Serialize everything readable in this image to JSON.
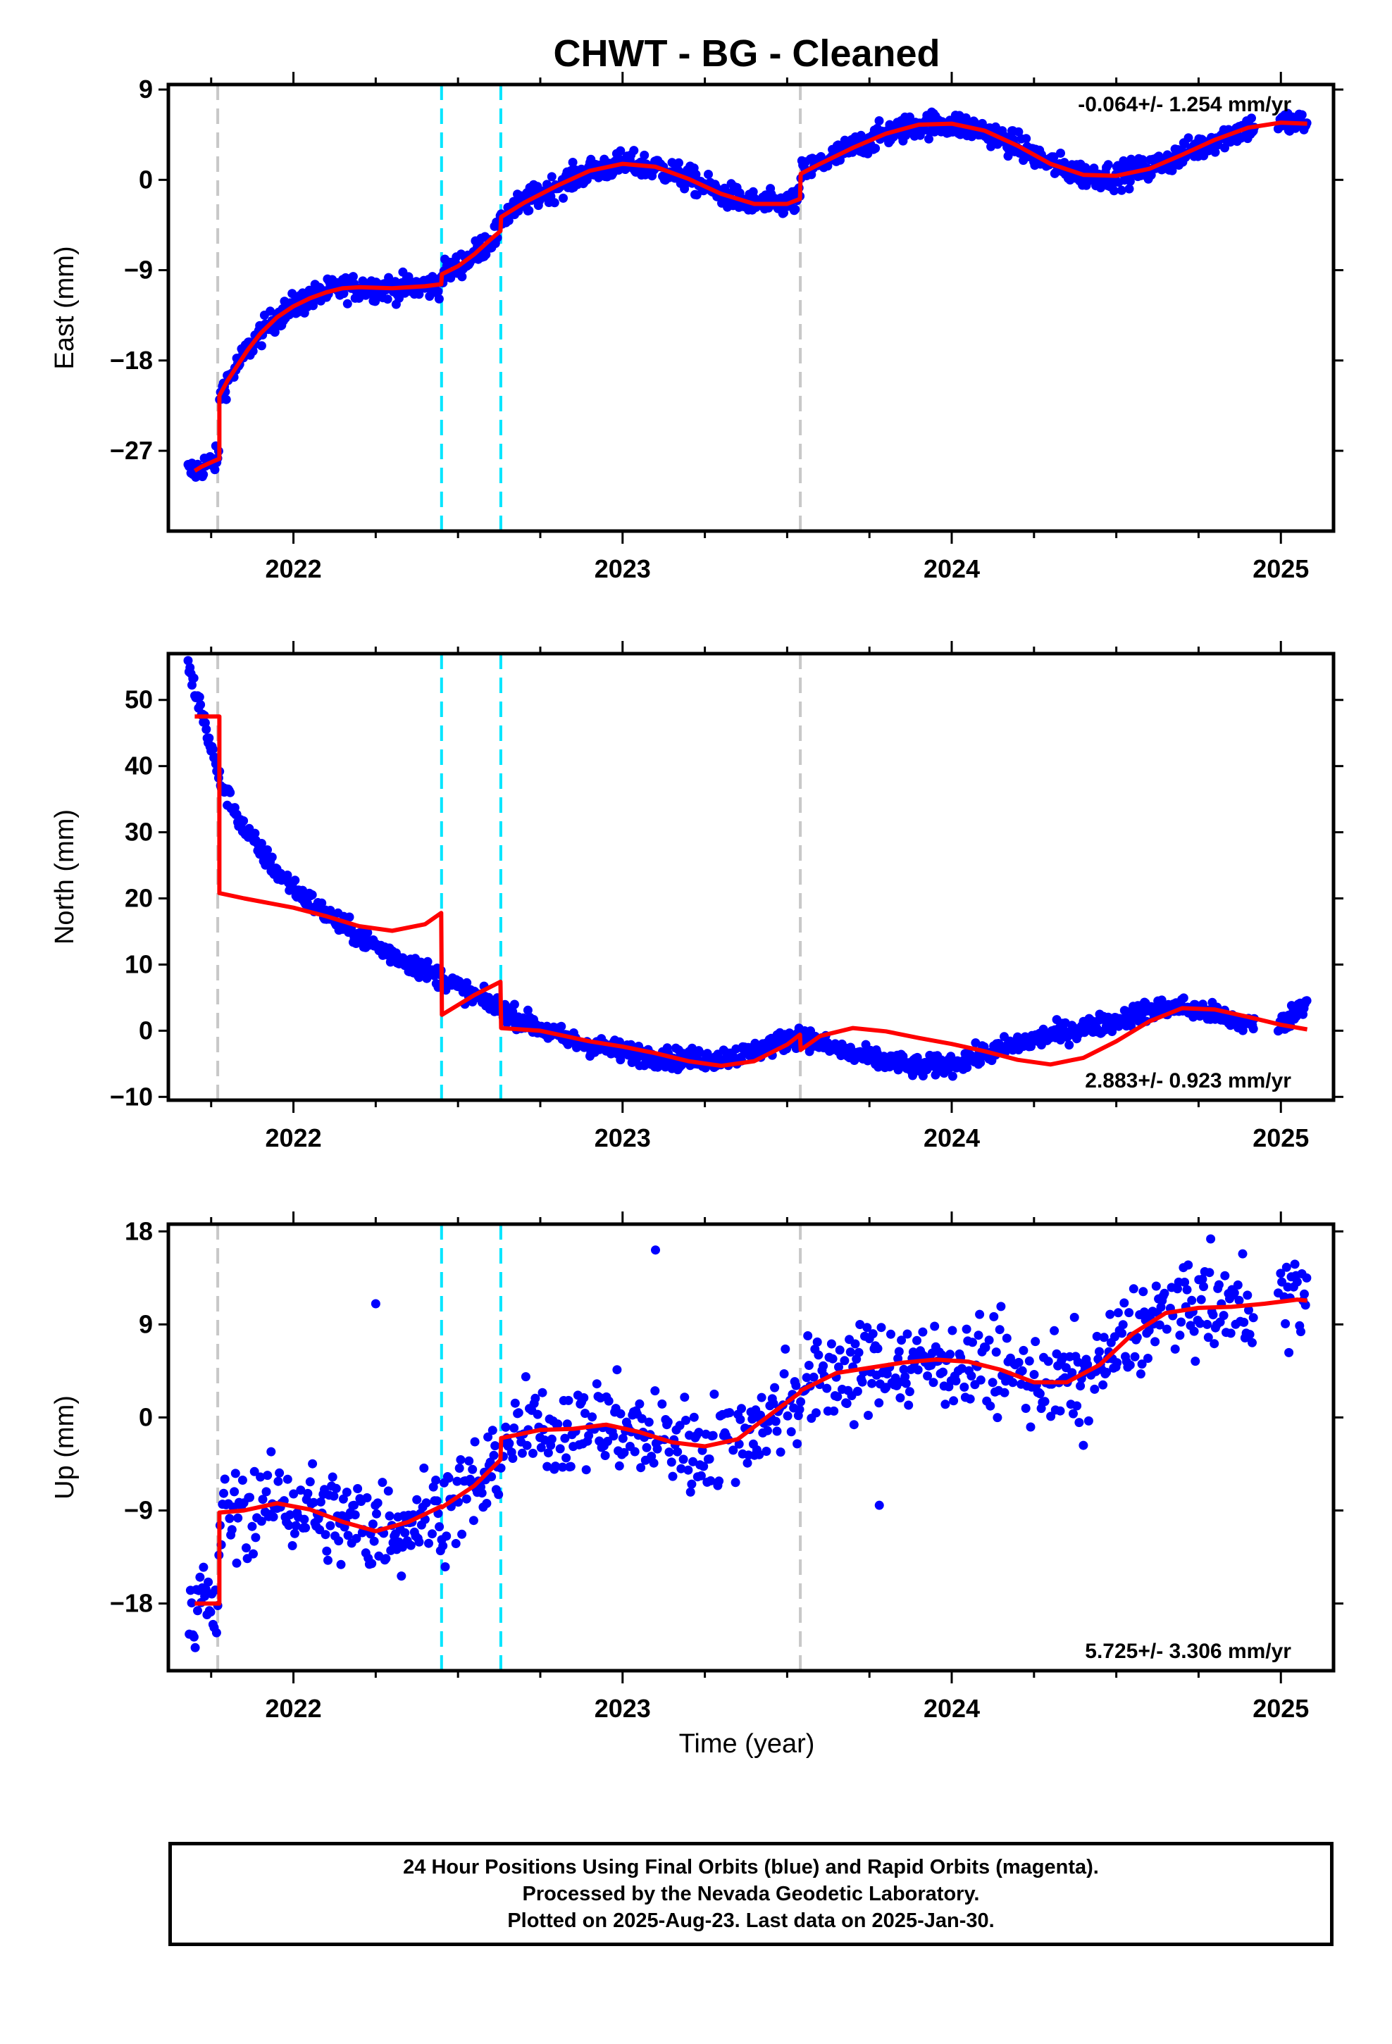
{
  "title": "CHWT  - BG - Cleaned",
  "footer": {
    "line1": "24 Hour Positions Using Final Orbits (blue) and Rapid Orbits (magenta).",
    "line2": "Processed by the Nevada Geodetic Laboratory.",
    "line3": "Plotted on 2025-Aug-23. Last data on 2025-Jan-30."
  },
  "colors": {
    "data_points": "#0000ff",
    "model_fit": "#ff0000",
    "equipment_change": "#c8c8c8",
    "earthquake_offset": "#00e5ff"
  },
  "chart_data": [
    {
      "type": "scatter",
      "component": "East",
      "ylabel": "East (mm)",
      "xlabel": "",
      "xlim": [
        2021.62,
        2025.16
      ],
      "ylim": [
        -35,
        9.5
      ],
      "yticks": [
        9,
        0,
        -9,
        -18,
        -27
      ],
      "ytick_labels": [
        "9",
        "0",
        "-9",
        "-18",
        "-27"
      ],
      "xticks": [
        2022,
        2023,
        2024,
        2025
      ],
      "rate_text": "-0.064+/- 1.254 mm/yr",
      "rate_position": "top-right",
      "gray_lines": [
        2021.77,
        2023.54
      ],
      "cyan_lines": [
        2022.45,
        2022.63
      ],
      "trend": {
        "x": [
          2021.7,
          2021.72,
          2021.74,
          2021.76,
          2021.775,
          2021.775,
          2021.8,
          2021.83,
          2021.86,
          2021.9,
          2021.95,
          2022.0,
          2022.05,
          2022.1,
          2022.15,
          2022.2,
          2022.3,
          2022.4,
          2022.449,
          2022.451,
          2022.5,
          2022.55,
          2022.6,
          2022.629,
          2022.631,
          2022.7,
          2022.8,
          2022.9,
          2023.0,
          2023.1,
          2023.2,
          2023.3,
          2023.4,
          2023.5,
          2023.539,
          2023.541,
          2023.6,
          2023.7,
          2023.8,
          2023.9,
          2024.0,
          2024.1,
          2024.2,
          2024.3,
          2024.4,
          2024.5,
          2024.6,
          2024.7,
          2024.8,
          2024.9,
          2025.0,
          2025.08
        ],
        "y": [
          -29.0,
          -28.6,
          -28.3,
          -28.0,
          -27.8,
          -21.5,
          -20.0,
          -18.5,
          -17.0,
          -15.3,
          -13.7,
          -12.6,
          -11.8,
          -11.2,
          -10.8,
          -10.7,
          -10.8,
          -10.6,
          -10.4,
          -9.4,
          -8.6,
          -7.4,
          -5.9,
          -5.1,
          -3.7,
          -2.3,
          -0.6,
          0.9,
          1.6,
          1.3,
          0.1,
          -1.4,
          -2.4,
          -2.4,
          -1.9,
          0.6,
          1.6,
          3.2,
          4.6,
          5.5,
          5.6,
          4.9,
          3.4,
          1.6,
          0.5,
          0.4,
          1.1,
          2.5,
          4.0,
          5.2,
          5.7,
          5.6
        ]
      },
      "scatter_noise": 0.9,
      "points_summary": "daily positions, roughly 1150 points between 2021.68 and 2025.08"
    },
    {
      "type": "scatter",
      "component": "North",
      "ylabel": "North (mm)",
      "xlabel": "",
      "xlim": [
        2021.62,
        2025.16
      ],
      "ylim": [
        -10.5,
        57
      ],
      "yticks": [
        50,
        40,
        30,
        20,
        10,
        0,
        -10
      ],
      "ytick_labels": [
        "50",
        "40",
        "30",
        "20",
        "10",
        "0",
        "-10"
      ],
      "xticks": [
        2022,
        2023,
        2024,
        2025
      ],
      "rate_text": "2.883+/- 0.923 mm/yr",
      "rate_position": "bottom-right",
      "gray_lines": [
        2021.77,
        2023.54
      ],
      "cyan_lines": [
        2022.45,
        2022.63
      ],
      "trend": {
        "x": [
          2021.7,
          2021.775,
          2021.775,
          2021.85,
          2022.0,
          2022.1,
          2022.2,
          2022.3,
          2022.4,
          2022.449,
          2022.451,
          2022.55,
          2022.629,
          2022.631,
          2022.75,
          2022.9,
          2023.0,
          2023.1,
          2023.2,
          2023.3,
          2023.4,
          2023.5,
          2023.539,
          2023.541,
          2023.6,
          2023.7,
          2023.8,
          2023.9,
          2024.0,
          2024.1,
          2024.2,
          2024.3,
          2024.4,
          2024.5,
          2024.6,
          2024.7,
          2024.8,
          2024.9,
          2025.0,
          2025.08
        ],
        "y": [
          47.5,
          47.5,
          20.8,
          20.0,
          18.6,
          17.3,
          15.8,
          15.1,
          16.1,
          17.8,
          2.4,
          5.4,
          7.4,
          0.4,
          0.0,
          -1.6,
          -2.4,
          -3.4,
          -4.6,
          -5.3,
          -4.6,
          -2.1,
          -0.6,
          -2.9,
          -0.8,
          0.4,
          -0.1,
          -1.1,
          -2.0,
          -3.1,
          -4.4,
          -5.1,
          -4.1,
          -1.6,
          1.4,
          3.4,
          3.2,
          2.1,
          0.9,
          0.2
        ]
      },
      "points_trend": {
        "x": [
          2021.68,
          2021.72,
          2021.775,
          2021.85,
          2021.95,
          2022.05,
          2022.15,
          2022.25,
          2022.35,
          2022.45,
          2022.55,
          2022.65,
          2022.75,
          2022.85,
          2022.95,
          2023.05,
          2023.15,
          2023.25,
          2023.35,
          2023.45,
          2023.54,
          2023.6,
          2023.7,
          2023.8,
          2023.9,
          2024.0,
          2024.1,
          2024.2,
          2024.3,
          2024.4,
          2024.5,
          2024.6,
          2024.7,
          2024.8,
          2024.9,
          2025.0,
          2025.08
        ],
        "y": [
          55.0,
          48.5,
          38.0,
          30.5,
          24.0,
          19.5,
          15.8,
          12.8,
          10.3,
          8.0,
          5.2,
          2.8,
          0.3,
          -1.6,
          -2.7,
          -3.6,
          -4.2,
          -4.3,
          -3.8,
          -2.3,
          -0.6,
          -2.0,
          -3.6,
          -4.6,
          -5.6,
          -5.0,
          -3.6,
          -1.9,
          -0.7,
          0.4,
          1.5,
          3.2,
          3.6,
          2.5,
          1.0,
          0.8,
          4.5
        ]
      },
      "scatter_noise": 1.1,
      "points_summary": "daily positions, roughly 1150 points between 2021.68 and 2025.08"
    },
    {
      "type": "scatter",
      "component": "Up",
      "ylabel": "Up (mm)",
      "xlabel": "Time (year)",
      "xlim": [
        2021.62,
        2025.16
      ],
      "ylim": [
        -24.5,
        18.7
      ],
      "yticks": [
        18,
        9,
        0,
        -9,
        -18
      ],
      "ytick_labels": [
        "18",
        "9",
        "0",
        "-9",
        "-18"
      ],
      "xticks": [
        2022,
        2023,
        2024,
        2025
      ],
      "rate_text": "5.725+/- 3.306 mm/yr",
      "rate_position": "bottom-right",
      "gray_lines": [
        2021.77,
        2023.54
      ],
      "cyan_lines": [
        2022.45,
        2022.63
      ],
      "trend": {
        "x": [
          2021.7,
          2021.775,
          2021.775,
          2021.85,
          2021.95,
          2022.05,
          2022.15,
          2022.25,
          2022.35,
          2022.449,
          2022.451,
          2022.55,
          2022.629,
          2022.631,
          2022.75,
          2022.85,
          2022.95,
          2023.05,
          2023.15,
          2023.25,
          2023.35,
          2023.45,
          2023.539,
          2023.541,
          2023.65,
          2023.75,
          2023.85,
          2023.95,
          2024.05,
          2024.15,
          2024.25,
          2024.35,
          2024.45,
          2024.55,
          2024.65,
          2024.75,
          2024.85,
          2024.95,
          2025.05,
          2025.08
        ],
        "y": [
          -18.0,
          -18.0,
          -9.2,
          -9.0,
          -8.3,
          -8.9,
          -10.1,
          -11.0,
          -10.1,
          -8.6,
          -8.7,
          -6.6,
          -4.1,
          -2.0,
          -1.2,
          -1.1,
          -0.7,
          -1.4,
          -2.4,
          -2.8,
          -2.1,
          0.3,
          2.4,
          2.6,
          4.3,
          4.8,
          5.3,
          5.6,
          5.4,
          4.6,
          3.4,
          3.4,
          5.1,
          8.1,
          10.1,
          10.6,
          10.7,
          11.0,
          11.4,
          11.3
        ]
      },
      "scatter_noise": 3.2,
      "outliers": [
        {
          "x": 2022.25,
          "y": 11.0
        },
        {
          "x": 2023.1,
          "y": 16.2
        },
        {
          "x": 2023.78,
          "y": -8.5
        },
        {
          "x": 2024.4,
          "y": -2.7
        }
      ],
      "points_summary": "daily positions, sparser coverage, roughly 1000 points between 2021.68 and 2025.08"
    }
  ]
}
